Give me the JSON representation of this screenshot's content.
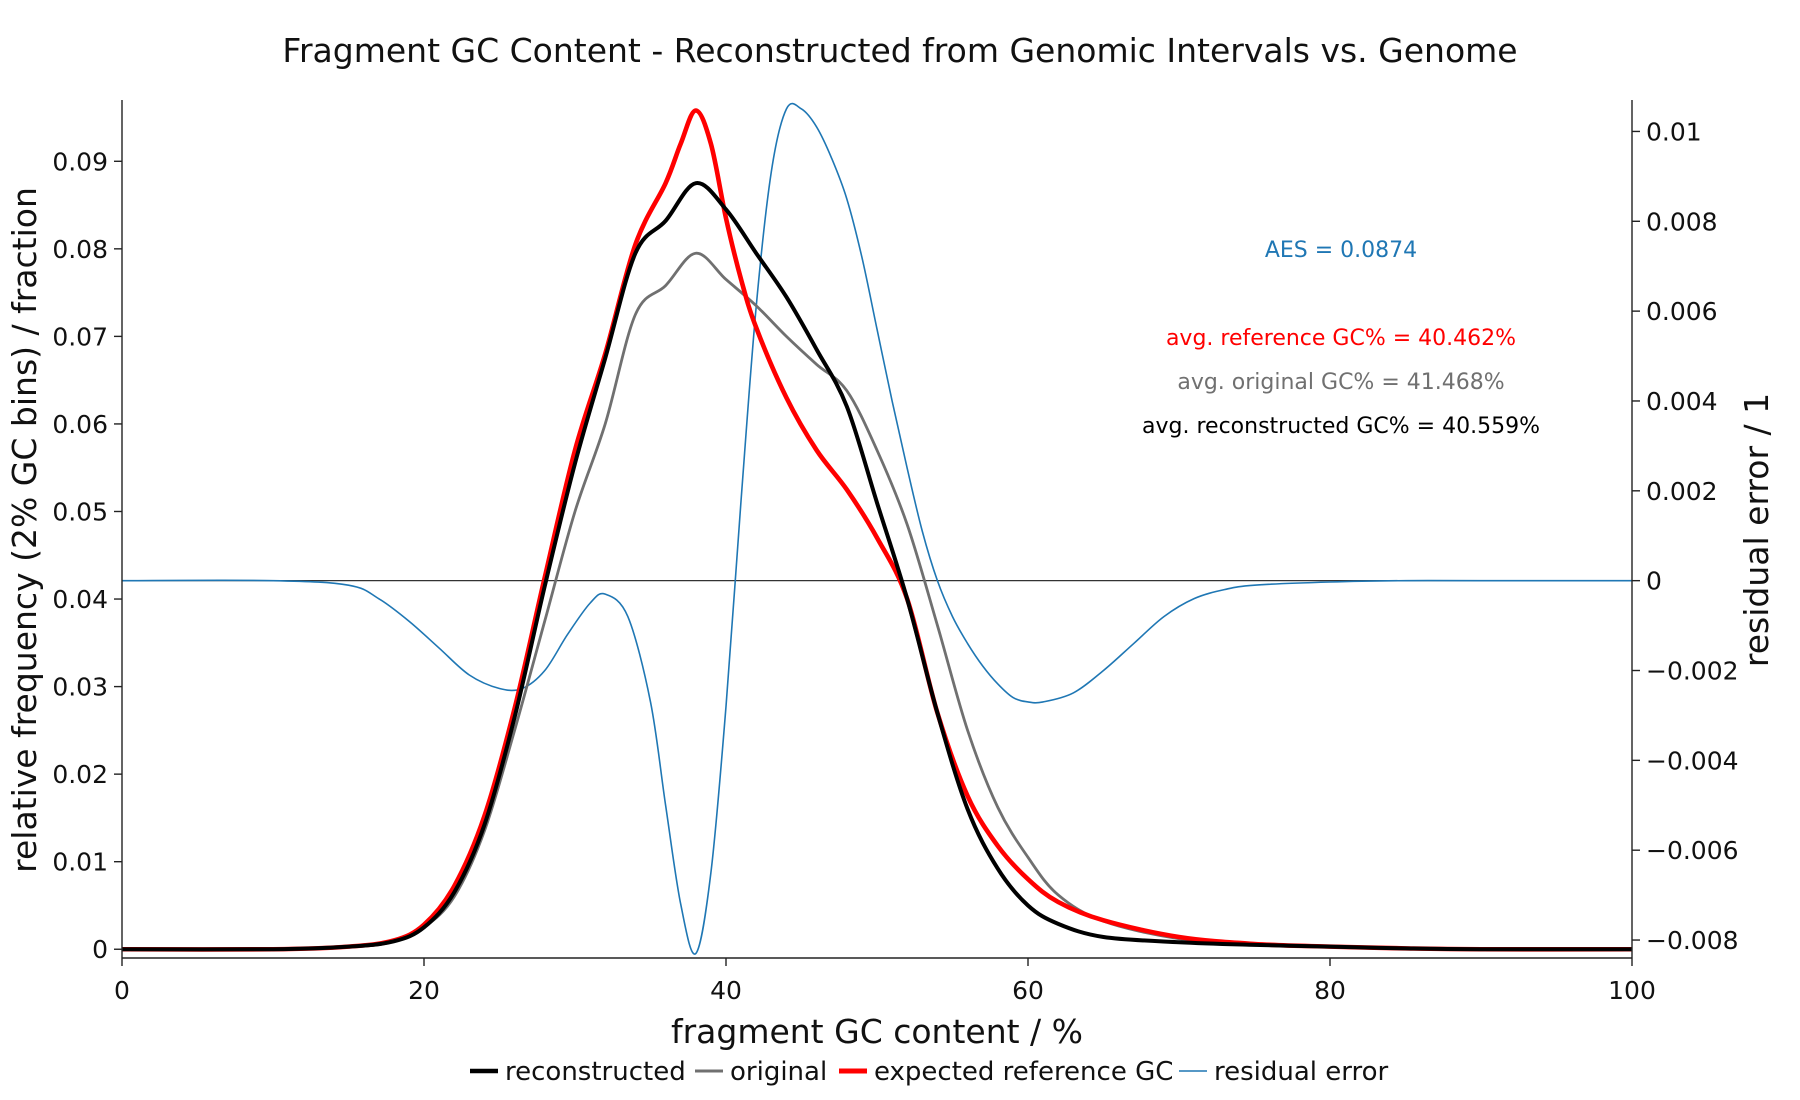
{
  "chart_data": {
    "type": "line",
    "title": "Fragment GC Content - Reconstructed from Genomic Intervals vs. Genome",
    "xlabel": "fragment GC content / %",
    "ylabel": "relative frequency (2% GC bins) / fraction",
    "y2label": "residual error / 1",
    "xlim": [
      0,
      100
    ],
    "ylim": [
      -0.001,
      0.097
    ],
    "y2lim": [
      -0.0084,
      0.0107
    ],
    "xticks": [
      0,
      20,
      40,
      60,
      80,
      100
    ],
    "yticks": [
      0,
      0.01,
      0.02,
      0.03,
      0.04,
      0.05,
      0.06,
      0.07,
      0.08,
      0.09
    ],
    "ytick_labels": [
      "0",
      "0.01",
      "0.02",
      "0.03",
      "0.04",
      "0.05",
      "0.06",
      "0.07",
      "0.08",
      "0.09"
    ],
    "y2ticks": [
      -0.008,
      -0.006,
      -0.004,
      -0.002,
      0,
      0.002,
      0.004,
      0.006,
      0.008,
      0.01
    ],
    "y2tick_labels": [
      "−0.008",
      "−0.006",
      "−0.004",
      "−0.002",
      "0",
      "0.002",
      "0.004",
      "0.006",
      "0.008",
      "0.01"
    ],
    "grid": false,
    "legend_position": "bottom-center",
    "annotations": [
      {
        "text": "AES = 0.0874",
        "color": "#1f77b4"
      },
      {
        "text": "avg. reference GC% = 40.462%",
        "color": "#ff0000"
      },
      {
        "text": "avg. original GC% = 41.468%",
        "color": "#707070"
      },
      {
        "text": "avg. reconstructed GC% = 40.559%",
        "color": "#000000"
      }
    ],
    "series": [
      {
        "name": "reconstructed",
        "axis": "left",
        "color": "#000000",
        "x": [
          0,
          10,
          15,
          18,
          20,
          22,
          24,
          26,
          28,
          30,
          32,
          34,
          36,
          38,
          40,
          42,
          44,
          46,
          48,
          50,
          52,
          54,
          56,
          58,
          60,
          62,
          65,
          70,
          75,
          80,
          85,
          90,
          100
        ],
        "y": [
          0,
          0,
          0.0003,
          0.0009,
          0.0025,
          0.0065,
          0.0142,
          0.0265,
          0.0415,
          0.0555,
          0.0675,
          0.0795,
          0.0832,
          0.0875,
          0.0845,
          0.0795,
          0.0745,
          0.0685,
          0.062,
          0.051,
          0.04,
          0.027,
          0.016,
          0.0092,
          0.005,
          0.0029,
          0.0014,
          0.0008,
          0.0005,
          0.0003,
          0.0001,
          0,
          0
        ]
      },
      {
        "name": "original",
        "axis": "left",
        "color": "#707070",
        "x": [
          0,
          10,
          15,
          18,
          20,
          22,
          24,
          26,
          28,
          30,
          32,
          34,
          36,
          38,
          40,
          42,
          44,
          46,
          48,
          50,
          52,
          54,
          56,
          58,
          60,
          62,
          65,
          70,
          75,
          80,
          85,
          90,
          100
        ],
        "y": [
          0,
          0,
          0.0003,
          0.0009,
          0.0025,
          0.006,
          0.0135,
          0.025,
          0.0375,
          0.05,
          0.06,
          0.0725,
          0.0758,
          0.0795,
          0.0765,
          0.0735,
          0.07,
          0.0668,
          0.0638,
          0.057,
          0.0485,
          0.037,
          0.025,
          0.0162,
          0.0105,
          0.0062,
          0.0032,
          0.0012,
          0.0006,
          0.0003,
          0.0001,
          0,
          0
        ]
      },
      {
        "name": "expected reference GC",
        "axis": "left",
        "color": "#ff0000",
        "x": [
          0,
          10,
          15,
          18,
          20,
          22,
          24,
          26,
          28,
          30,
          32,
          34,
          36,
          37,
          38,
          39,
          40,
          41,
          42,
          44,
          46,
          48,
          50,
          52,
          54,
          56,
          58,
          60,
          62,
          65,
          70,
          75,
          80,
          85,
          90,
          100
        ],
        "y": [
          0,
          0,
          0.0003,
          0.001,
          0.0028,
          0.0072,
          0.0152,
          0.0275,
          0.0425,
          0.057,
          0.068,
          0.0805,
          0.0875,
          0.092,
          0.0958,
          0.092,
          0.0835,
          0.0765,
          0.071,
          0.063,
          0.057,
          0.0525,
          0.047,
          0.04,
          0.027,
          0.0175,
          0.0118,
          0.008,
          0.0054,
          0.0033,
          0.0014,
          0.0006,
          0.0003,
          0.0001,
          0,
          0
        ]
      },
      {
        "name": "residual error",
        "axis": "right",
        "color": "#1f77b4",
        "x": [
          0,
          10,
          15,
          17,
          19,
          21,
          23,
          25,
          26.5,
          28,
          29.5,
          31,
          32,
          33.5,
          35,
          36,
          37,
          38,
          39,
          40,
          41,
          42,
          43,
          44,
          45,
          46,
          47,
          48,
          49,
          50,
          51,
          52,
          53,
          54,
          55,
          56,
          57,
          58,
          59,
          60,
          61,
          63,
          65,
          67,
          69,
          71,
          73,
          75,
          80,
          85,
          90,
          100
        ],
        "y": [
          0,
          0,
          -0.0001,
          -0.0004,
          -0.0009,
          -0.0015,
          -0.0021,
          -0.0024,
          -0.0024,
          -0.002,
          -0.0012,
          -0.0005,
          -0.0003,
          -0.0008,
          -0.0027,
          -0.005,
          -0.0072,
          -0.0083,
          -0.0065,
          -0.0028,
          0.0018,
          0.0061,
          0.0091,
          0.0105,
          0.0105,
          0.0101,
          0.0094,
          0.0085,
          0.0072,
          0.0056,
          0.004,
          0.0025,
          0.0011,
          0,
          -0.0008,
          -0.0014,
          -0.0019,
          -0.0023,
          -0.0026,
          -0.0027,
          -0.0027,
          -0.0025,
          -0.002,
          -0.0014,
          -0.0008,
          -0.0004,
          -0.0002,
          -0.0001,
          -3e-05,
          0,
          0,
          0
        ]
      }
    ]
  }
}
